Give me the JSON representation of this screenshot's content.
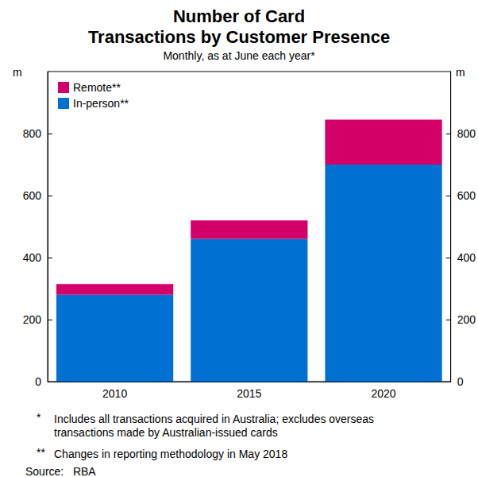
{
  "chart_data": {
    "type": "bar",
    "title": "Number of Card\nTransactions by Customer Presence",
    "subtitle": "Monthly, as at June each year*",
    "ylabel": "m",
    "categories": [
      "2010",
      "2015",
      "2020"
    ],
    "series": [
      {
        "name": "In-person**",
        "color": "#0070d2",
        "values": [
          280,
          460,
          700
        ]
      },
      {
        "name": "Remote**",
        "color": "#d4006a",
        "values": [
          35,
          60,
          145
        ]
      }
    ],
    "stacked": true,
    "ylim": [
      0,
      1000
    ],
    "yticks": [
      0,
      200,
      400,
      600,
      800
    ],
    "grid": false,
    "legend": "top-left",
    "notes": [
      {
        "mark": "*",
        "text": "Includes all transactions acquired in Australia; excludes overseas transactions made by Australian-issued cards"
      },
      {
        "mark": "**",
        "text": "Changes in reporting methodology in May 2018"
      }
    ],
    "source": "Source:   RBA"
  }
}
